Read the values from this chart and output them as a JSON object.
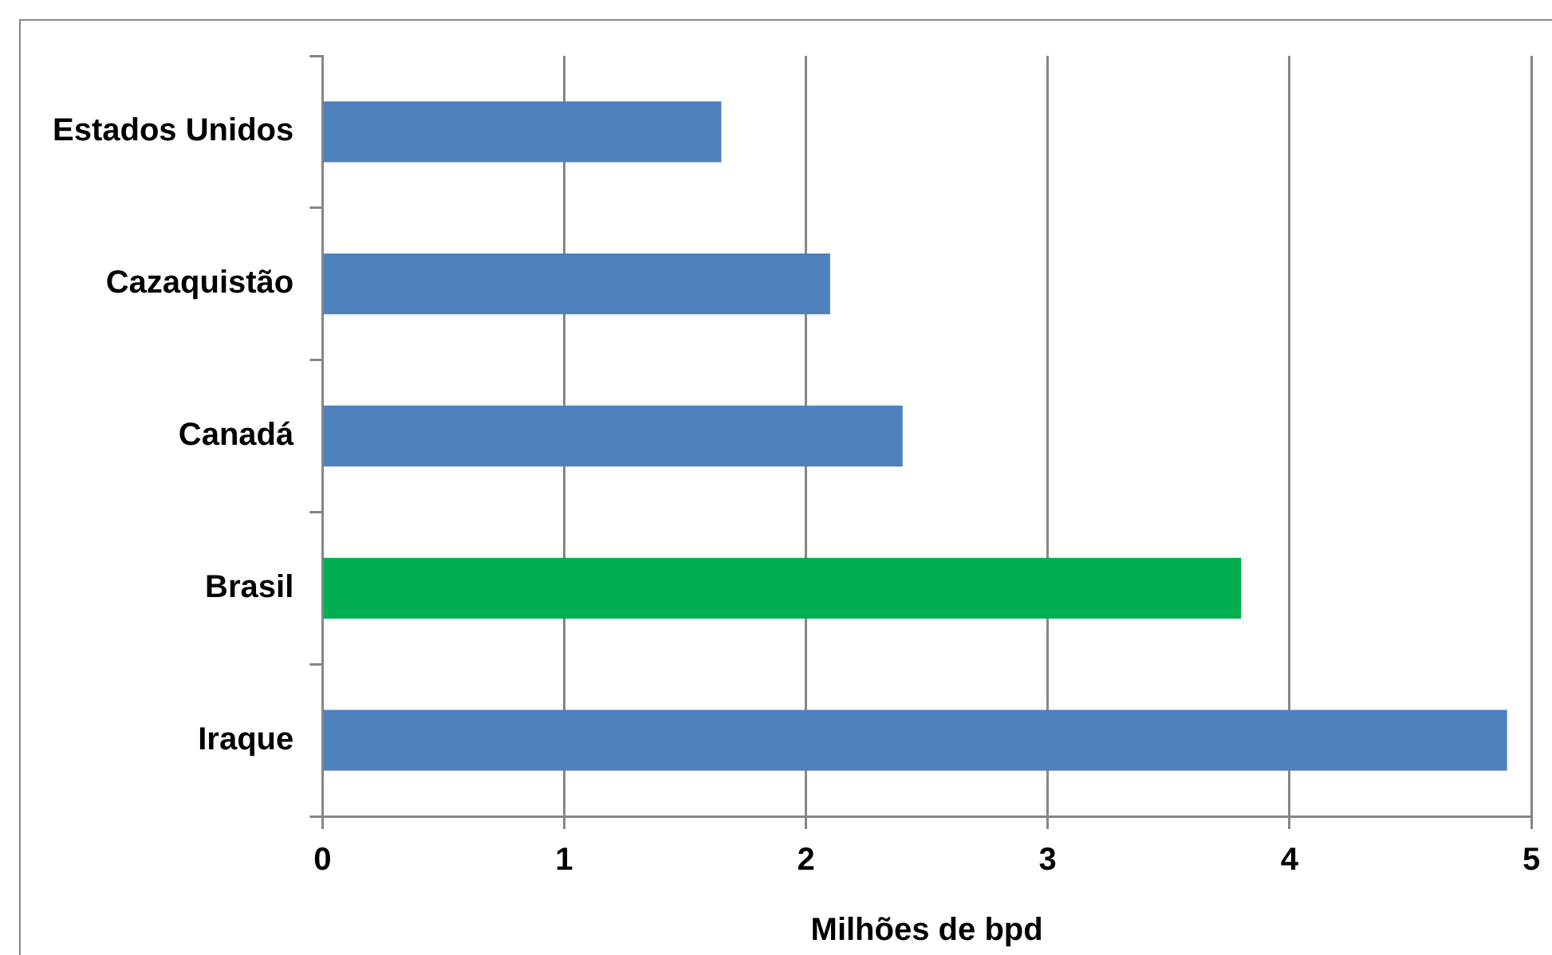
{
  "chart_data": {
    "type": "bar",
    "orientation": "horizontal",
    "xlabel": "Milhões de bpd",
    "categories": [
      "Estados Unidos",
      "Cazaquistão",
      "Canadá",
      "Brasil",
      "Iraque"
    ],
    "values": [
      1.65,
      2.1,
      2.4,
      3.8,
      4.9
    ],
    "colors": [
      "#4f81bd",
      "#4f81bd",
      "#4f81bd",
      "#00b050",
      "#4f81bd"
    ],
    "xlim": [
      0,
      5
    ],
    "xticks": [
      0,
      1,
      2,
      3,
      4,
      5
    ],
    "grid": "x",
    "legend": false
  }
}
